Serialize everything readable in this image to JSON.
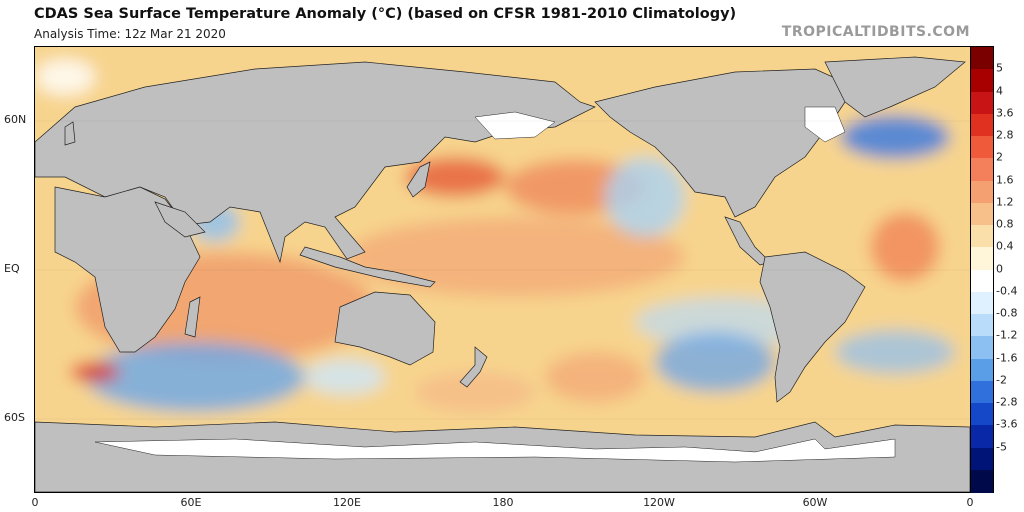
{
  "header": {
    "title": "CDAS Sea Surface Temperature Anomaly (°C) (based on CFSR 1981-2010 Climatology)",
    "analysis_time": "Analysis Time: 12z Mar 21 2020",
    "credit": "TROPICALTIDBITS.COM"
  },
  "map": {
    "lat_labels": [
      "60N",
      "EQ",
      "60S"
    ],
    "lon_labels": [
      "0",
      "60E",
      "120E",
      "180",
      "120W",
      "60W",
      "0"
    ],
    "colors": {
      "land": "#bfbfbf",
      "ice": "#ffffff",
      "ocean_warm": "#f6d58c"
    }
  },
  "colorbar": {
    "labels": [
      "5",
      "4",
      "3.6",
      "2.8",
      "2",
      "1.6",
      "1.2",
      "0.8",
      "0.4",
      "0",
      "-0.4",
      "-0.8",
      "-1.2",
      "-1.6",
      "-2",
      "-2.8",
      "-3.6",
      "-5"
    ],
    "colors": [
      "#7a0000",
      "#a80000",
      "#c81414",
      "#e03020",
      "#ef5a3a",
      "#f3805a",
      "#f5a070",
      "#f7c08a",
      "#fadfaa",
      "#fff5d8",
      "#ffffff",
      "#dff0ff",
      "#b8dcfa",
      "#8cc0f2",
      "#5a9ee8",
      "#3070dc",
      "#1448c8",
      "#0828a8",
      "#001478",
      "#000a4a"
    ]
  }
}
